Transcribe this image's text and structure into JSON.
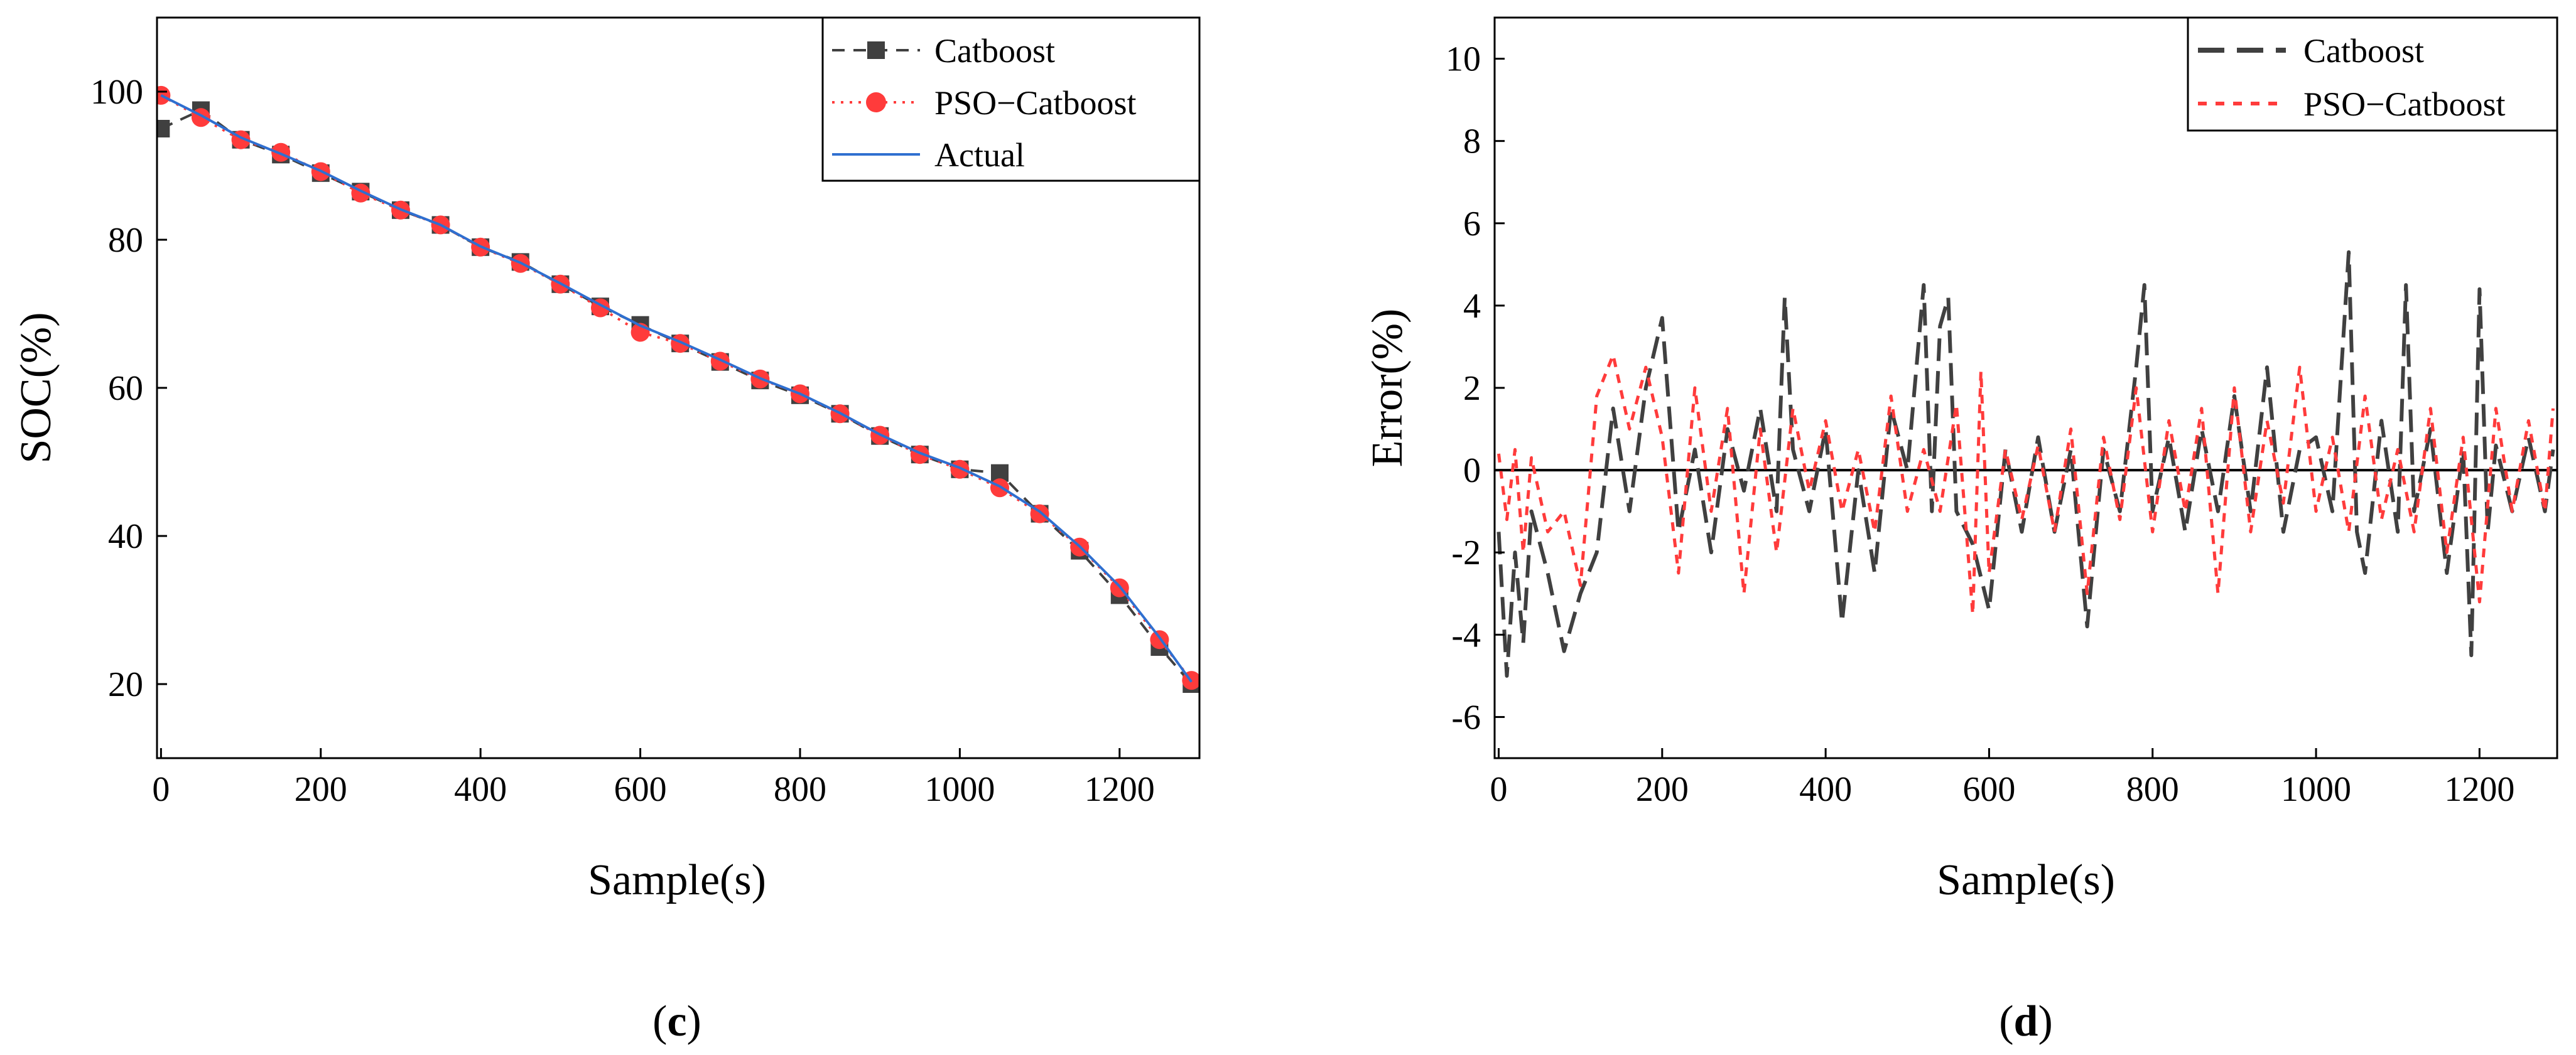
{
  "colors": {
    "catboost": "#404040",
    "pso": "#ff3b3b",
    "actual": "#2f6fd0",
    "axis": "#000000",
    "zero_line": "#000000"
  },
  "captions": {
    "c_open": "(",
    "c_letter": "c",
    "c_close": ")",
    "d_open": "(",
    "d_letter": "d",
    "d_close": ")"
  },
  "chart_data": [
    {
      "type": "line",
      "id": "c",
      "title": "",
      "xlabel": "Sample(s)",
      "ylabel": "SOC(%)",
      "xlim": [
        -5,
        1300
      ],
      "ylim": [
        10,
        110
      ],
      "xticks": [
        0,
        200,
        400,
        600,
        800,
        1000,
        1200
      ],
      "xtick_labels": [
        "0",
        "200",
        "400",
        "600",
        "800",
        "1000",
        "1200"
      ],
      "yticks": [
        20,
        40,
        60,
        80,
        100
      ],
      "ytick_labels": [
        "20",
        "40",
        "60",
        "80",
        "100"
      ],
      "legend_position": "top-right",
      "series": [
        {
          "name": "Catboost",
          "legend_label": "Catboost",
          "style": "dashed-square",
          "color": "#404040",
          "x": [
            0,
            50,
            100,
            150,
            200,
            250,
            300,
            350,
            400,
            450,
            500,
            550,
            600,
            650,
            700,
            750,
            800,
            850,
            900,
            950,
            1000,
            1050,
            1100,
            1150,
            1200,
            1250,
            1290
          ],
          "y": [
            95,
            97.5,
            93.5,
            91.5,
            89,
            86.5,
            84,
            82,
            79,
            77,
            74,
            71,
            68.5,
            66,
            63.5,
            61,
            59,
            56.5,
            53.5,
            51,
            49,
            48.5,
            43,
            38,
            32,
            25,
            20
          ]
        },
        {
          "name": "PSO-Catboost",
          "legend_label": "PSO−Catboost",
          "style": "dotted-circle",
          "color": "#ff3b3b",
          "x": [
            0,
            50,
            100,
            150,
            200,
            250,
            300,
            350,
            400,
            450,
            500,
            550,
            600,
            650,
            700,
            750,
            800,
            850,
            900,
            950,
            1000,
            1050,
            1100,
            1150,
            1200,
            1250,
            1290
          ],
          "y": [
            99.5,
            96.5,
            93.5,
            91.8,
            89.2,
            86.3,
            84,
            82,
            79,
            76.8,
            74,
            70.8,
            67.5,
            66,
            63.6,
            61.2,
            59.2,
            56.5,
            53.6,
            51,
            49,
            46.5,
            43,
            38.5,
            33,
            26,
            20.5
          ]
        },
        {
          "name": "Actual",
          "legend_label": "Actual",
          "style": "solid",
          "color": "#2f6fd0",
          "x": [
            0,
            50,
            100,
            150,
            200,
            250,
            300,
            350,
            400,
            450,
            500,
            550,
            600,
            650,
            700,
            750,
            800,
            850,
            900,
            950,
            1000,
            1050,
            1100,
            1150,
            1200,
            1250,
            1290
          ],
          "y": [
            99.5,
            96.8,
            93.8,
            91.6,
            89.3,
            86.6,
            84.1,
            82,
            79.1,
            76.9,
            74.1,
            71.2,
            68.4,
            66.2,
            63.8,
            61.3,
            59.2,
            56.6,
            53.7,
            51.2,
            49.2,
            46.7,
            43.3,
            38.6,
            33.2,
            26.3,
            20.3
          ]
        }
      ]
    },
    {
      "type": "line",
      "id": "d",
      "title": "",
      "xlabel": "Sample(s)",
      "ylabel": "Error(%)",
      "xlim": [
        -5,
        1295
      ],
      "ylim": [
        -7,
        11
      ],
      "xticks": [
        0,
        200,
        400,
        600,
        800,
        1000,
        1200
      ],
      "xtick_labels": [
        "0",
        "200",
        "400",
        "600",
        "800",
        "1000",
        "1200"
      ],
      "yticks": [
        -6,
        -4,
        -2,
        0,
        2,
        4,
        6,
        8,
        10
      ],
      "ytick_labels": [
        "-6",
        "-4",
        "-2",
        "0",
        "2",
        "4",
        "6",
        "8",
        "10"
      ],
      "reference_line_y": 0,
      "legend_position": "top-right",
      "series": [
        {
          "name": "Catboost",
          "legend_label": "Catboost",
          "style": "long-dash",
          "color": "#404040",
          "x": [
            0,
            10,
            20,
            30,
            40,
            60,
            80,
            100,
            120,
            140,
            160,
            180,
            200,
            220,
            240,
            260,
            280,
            300,
            320,
            340,
            350,
            360,
            380,
            400,
            420,
            440,
            460,
            480,
            500,
            520,
            530,
            540,
            550,
            560,
            580,
            600,
            620,
            640,
            660,
            680,
            700,
            720,
            740,
            760,
            780,
            790,
            800,
            820,
            840,
            860,
            880,
            900,
            920,
            940,
            960,
            980,
            1000,
            1020,
            1040,
            1050,
            1060,
            1080,
            1100,
            1110,
            1120,
            1140,
            1160,
            1180,
            1190,
            1200,
            1210,
            1220,
            1240,
            1260,
            1280,
            1290
          ],
          "y": [
            -1.5,
            -5,
            -2,
            -4.2,
            -1,
            -2.5,
            -4.4,
            -3,
            -2,
            1.5,
            -1,
            2,
            3.7,
            -1.5,
            0.5,
            -2,
            1,
            -0.5,
            1.5,
            -1,
            4.2,
            0.5,
            -1,
            1,
            -3.7,
            0,
            -2.5,
            1.5,
            0,
            4.5,
            -1,
            3.5,
            4.2,
            -1,
            -1.8,
            -3.4,
            0.5,
            -1.5,
            0.8,
            -1.5,
            0.5,
            -3.8,
            0.5,
            -1,
            2.5,
            4.5,
            -1,
            0.8,
            -1.5,
            1,
            -1,
            1.8,
            -1,
            2.5,
            -1.5,
            0.5,
            0.8,
            -1,
            5.3,
            -1.5,
            -2.5,
            1.2,
            -1.5,
            4.5,
            -1,
            1,
            -2.5,
            0.5,
            -4.5,
            4.4,
            -1.5,
            0.6,
            -1,
            0.8,
            -1,
            0.5
          ]
        },
        {
          "name": "PSO-Catboost",
          "legend_label": "PSO−Catboost",
          "style": "short-dash",
          "color": "#ff3b3b",
          "x": [
            0,
            10,
            20,
            30,
            40,
            60,
            80,
            100,
            120,
            140,
            160,
            180,
            200,
            220,
            240,
            260,
            280,
            300,
            320,
            340,
            360,
            380,
            400,
            420,
            440,
            460,
            480,
            500,
            520,
            540,
            560,
            580,
            590,
            600,
            620,
            640,
            660,
            680,
            700,
            720,
            740,
            760,
            780,
            800,
            820,
            840,
            860,
            880,
            900,
            920,
            940,
            960,
            980,
            1000,
            1020,
            1040,
            1060,
            1080,
            1100,
            1120,
            1140,
            1160,
            1180,
            1200,
            1220,
            1240,
            1260,
            1280,
            1290
          ],
          "y": [
            0.4,
            -1.2,
            0.5,
            -2,
            0.3,
            -1.5,
            -1,
            -2.8,
            1.8,
            2.8,
            1,
            2.5,
            0.8,
            -2.5,
            2,
            -1,
            1.5,
            -3,
            1,
            -2,
            1.5,
            -0.5,
            1.2,
            -1,
            0.5,
            -1.5,
            1.8,
            -1,
            0.5,
            -1,
            1.6,
            -3.5,
            2.4,
            -2.5,
            0.5,
            -1.2,
            0.6,
            -1.5,
            1,
            -3,
            0.8,
            -1.2,
            2,
            -1.5,
            1.2,
            -1,
            1.5,
            -3,
            2,
            -1.5,
            1.2,
            -0.8,
            2.5,
            -1,
            0.8,
            -1.5,
            1.8,
            -1.2,
            0.5,
            -1.5,
            1.5,
            -2,
            0.8,
            -3.2,
            1.5,
            -1,
            1.2,
            -1,
            1.5
          ]
        }
      ]
    }
  ]
}
